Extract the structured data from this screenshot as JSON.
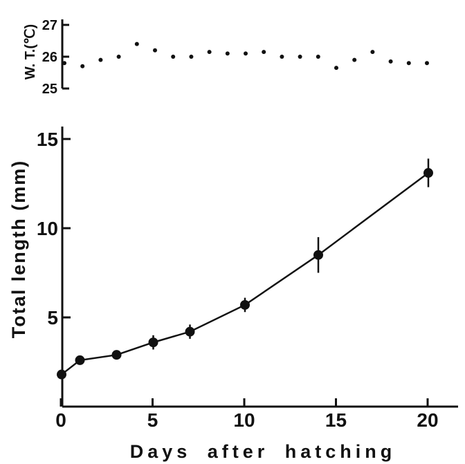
{
  "chart_data": [
    {
      "type": "scatter",
      "ylabel": "W. T.(℃)",
      "ylim": [
        25,
        27
      ],
      "yticks": [
        "25",
        "26",
        "27"
      ],
      "x": [
        0,
        1,
        2,
        3,
        4,
        5,
        6,
        7,
        8,
        9,
        10,
        11,
        12,
        13,
        14,
        15,
        16,
        17,
        18,
        19,
        20
      ],
      "values": [
        25.8,
        25.7,
        25.9,
        26.0,
        26.4,
        26.2,
        26.0,
        26.0,
        26.15,
        26.1,
        26.1,
        26.15,
        26.0,
        26.0,
        26.0,
        25.65,
        25.9,
        26.15,
        25.85,
        25.8,
        25.8
      ]
    },
    {
      "type": "line",
      "xlabel": "Days after hatching",
      "ylabel": "Total length (mm)",
      "xlim": [
        0,
        22
      ],
      "ylim": [
        0,
        15
      ],
      "xticks": [
        "0",
        "5",
        "10",
        "15",
        "20"
      ],
      "yticks": [
        "5",
        "10",
        "15"
      ],
      "x": [
        0,
        1,
        3,
        5,
        7,
        10,
        14,
        20
      ],
      "values": [
        1.8,
        2.6,
        2.9,
        3.6,
        4.2,
        5.7,
        8.5,
        13.1
      ],
      "error": [
        0.0,
        0.0,
        0.0,
        0.4,
        0.4,
        0.4,
        1.0,
        0.8
      ]
    }
  ]
}
